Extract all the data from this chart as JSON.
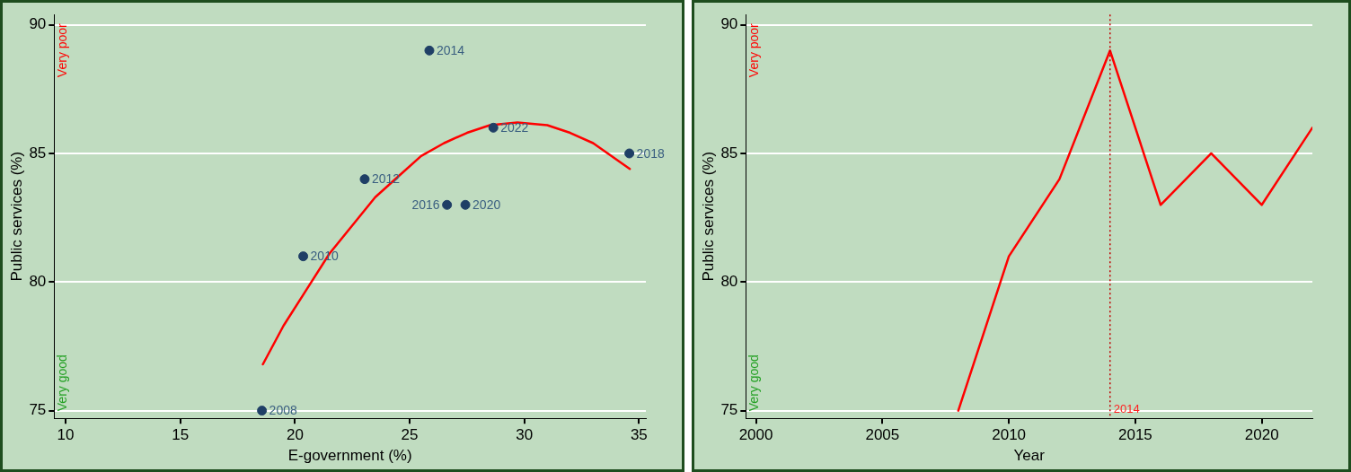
{
  "chart_data": [
    {
      "type": "scatter",
      "xlabel": "E-government (%)",
      "ylabel": "Public services (%)",
      "xlim": [
        9.5,
        35.3
      ],
      "ylim": [
        74.7,
        90.4
      ],
      "xticks": [
        10,
        15,
        20,
        25,
        30,
        35
      ],
      "yticks": [
        75,
        80,
        85,
        90
      ],
      "grid": "y",
      "legend": false,
      "marker": "circle",
      "annotations": [
        "Very poor",
        "Very good",
        {
          "text": "2008",
          "x": 18.56,
          "y": 75
        },
        {
          "text": "2010",
          "x": 20.36,
          "y": 81
        },
        {
          "text": "2012",
          "x": 23.04,
          "y": 84
        },
        {
          "text": "2014",
          "x": 25.86,
          "y": 89
        },
        {
          "text": "2016",
          "x": 26.63,
          "y": 83
        },
        {
          "text": "2018",
          "x": 34.58,
          "y": 85
        },
        {
          "text": "2020",
          "x": 27.43,
          "y": 83
        },
        {
          "text": "2022",
          "x": 28.65,
          "y": 86
        }
      ],
      "series": [
        {
          "color": "#1f3f66",
          "x": [
            18.56,
            20.36,
            23.04,
            25.86,
            26.63,
            34.58,
            27.43,
            28.65
          ],
          "values": [
            75,
            81,
            84,
            89,
            83,
            85,
            83,
            86
          ]
        },
        {
          "type": "line",
          "color": "#ff0000",
          "marker": "none",
          "x": [
            18.6,
            19.5,
            20.5,
            21.5,
            22.5,
            23.5,
            24.5,
            25.5,
            26.5,
            27.5,
            28.5,
            29.7,
            31,
            32,
            33,
            34.6
          ],
          "values": [
            76.8,
            78.3,
            79.7,
            81.1,
            82.2,
            83.3,
            84.1,
            84.9,
            85.4,
            85.8,
            86.1,
            86.2,
            86.1,
            85.8,
            85.4,
            84.4
          ]
        }
      ]
    },
    {
      "type": "line",
      "xlabel": "Year",
      "ylabel": "Public services (%)",
      "xlim": [
        1999.6,
        2022
      ],
      "ylim": [
        74.7,
        90.4
      ],
      "xticks": [
        2000,
        2005,
        2010,
        2015,
        2020
      ],
      "yticks": [
        75,
        80,
        85,
        90
      ],
      "grid": "y",
      "legend": false,
      "marker": "none",
      "annotations": [
        "Very poor",
        "Very good"
      ],
      "ref_lines": [
        {
          "axis": "x",
          "value": 2014,
          "label": "2014",
          "color": "#c00000",
          "line_style": "dotted"
        }
      ],
      "x": [
        2008,
        2010,
        2012,
        2014,
        2016,
        2018,
        2020,
        2022
      ],
      "series": [
        {
          "color": "#ff0000",
          "values": [
            75,
            81,
            84,
            89,
            83,
            85,
            83,
            86
          ]
        }
      ]
    }
  ]
}
